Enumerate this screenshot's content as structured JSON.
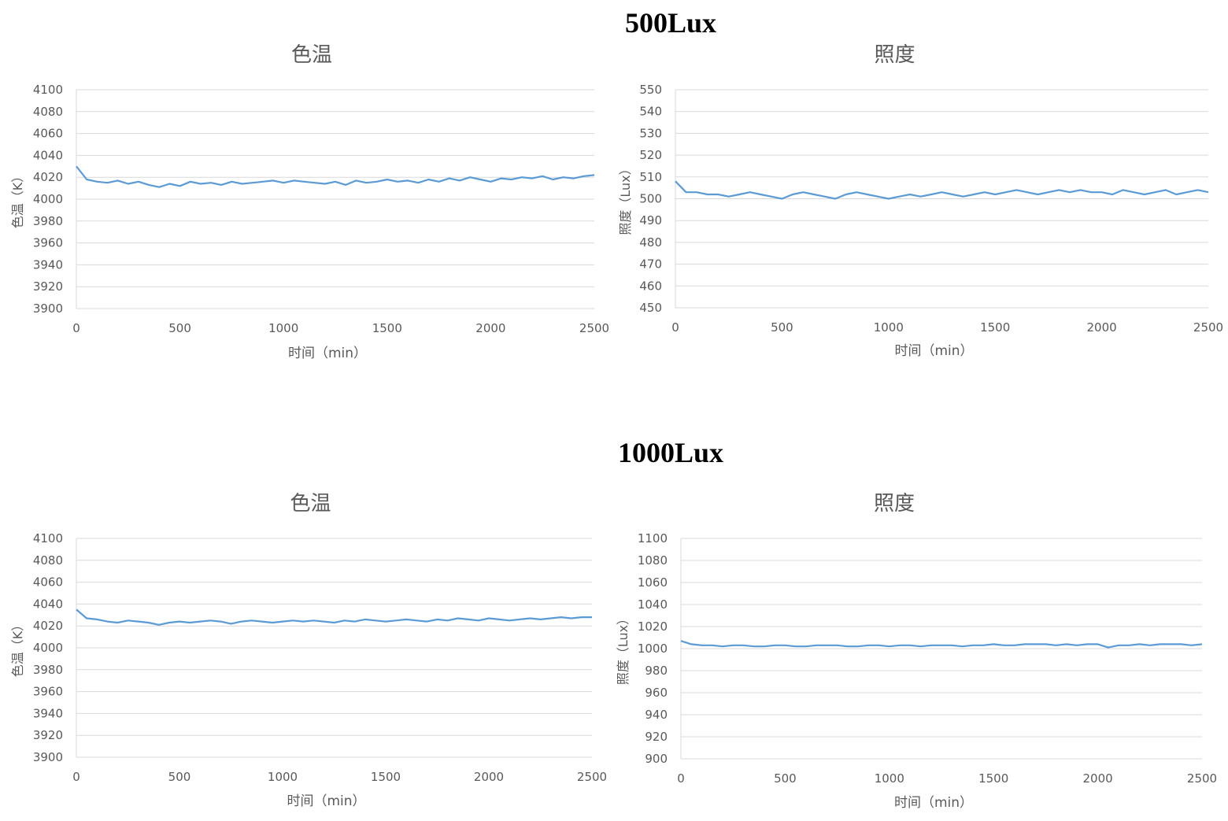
{
  "sections": [
    {
      "title": "500Lux"
    },
    {
      "title": "1000Lux"
    }
  ],
  "colors": {
    "line": "#5B9BD5",
    "grid": "#D9D9D9",
    "text": "#595959"
  },
  "chart_data": [
    {
      "type": "line",
      "section": "500Lux",
      "title": "色温",
      "xlabel": "时间（min）",
      "ylabel": "色温（K）",
      "xlim": [
        0,
        2500
      ],
      "ylim": [
        3900,
        4100
      ],
      "xticks": [
        0,
        500,
        1000,
        1500,
        2000,
        2500
      ],
      "yticks": [
        3900,
        3920,
        3940,
        3960,
        3980,
        4000,
        4020,
        4040,
        4060,
        4080,
        4100
      ],
      "grid": true,
      "x_start": 0,
      "x_step": 50,
      "values": [
        4030,
        4018,
        4016,
        4015,
        4017,
        4014,
        4016,
        4013,
        4011,
        4014,
        4012,
        4016,
        4014,
        4015,
        4013,
        4016,
        4014,
        4015,
        4016,
        4017,
        4015,
        4017,
        4016,
        4015,
        4014,
        4016,
        4013,
        4017,
        4015,
        4016,
        4018,
        4016,
        4017,
        4015,
        4018,
        4016,
        4019,
        4017,
        4020,
        4018,
        4016,
        4019,
        4018,
        4020,
        4019,
        4021,
        4018,
        4020,
        4019,
        4021,
        4022
      ]
    },
    {
      "type": "line",
      "section": "500Lux",
      "title": "照度",
      "xlabel": "时间（min）",
      "ylabel": "照度（Lux）",
      "xlim": [
        0,
        2500
      ],
      "ylim": [
        450,
        550
      ],
      "xticks": [
        0,
        500,
        1000,
        1500,
        2000,
        2500
      ],
      "yticks": [
        450,
        460,
        470,
        480,
        490,
        500,
        510,
        520,
        530,
        540,
        550
      ],
      "grid": true,
      "x_start": 0,
      "x_step": 50,
      "values": [
        508,
        503,
        503,
        502,
        502,
        501,
        502,
        503,
        502,
        501,
        500,
        502,
        503,
        502,
        501,
        500,
        502,
        503,
        502,
        501,
        500,
        501,
        502,
        501,
        502,
        503,
        502,
        501,
        502,
        503,
        502,
        503,
        504,
        503,
        502,
        503,
        504,
        503,
        504,
        503,
        503,
        502,
        504,
        503,
        502,
        503,
        504,
        502,
        503,
        504,
        503
      ]
    },
    {
      "type": "line",
      "section": "1000Lux",
      "title": "色温",
      "xlabel": "时间（min）",
      "ylabel": "色温（K）",
      "xlim": [
        0,
        2500
      ],
      "ylim": [
        3900,
        4100
      ],
      "xticks": [
        0,
        500,
        1000,
        1500,
        2000,
        2500
      ],
      "yticks": [
        3900,
        3920,
        3940,
        3960,
        3980,
        4000,
        4020,
        4040,
        4060,
        4080,
        4100
      ],
      "grid": true,
      "x_start": 0,
      "x_step": 50,
      "values": [
        4035,
        4027,
        4026,
        4024,
        4023,
        4025,
        4024,
        4023,
        4021,
        4023,
        4024,
        4023,
        4024,
        4025,
        4024,
        4022,
        4024,
        4025,
        4024,
        4023,
        4024,
        4025,
        4024,
        4025,
        4024,
        4023,
        4025,
        4024,
        4026,
        4025,
        4024,
        4025,
        4026,
        4025,
        4024,
        4026,
        4025,
        4027,
        4026,
        4025,
        4027,
        4026,
        4025,
        4026,
        4027,
        4026,
        4027,
        4028,
        4027,
        4028,
        4028
      ]
    },
    {
      "type": "line",
      "section": "1000Lux",
      "title": "照度",
      "xlabel": "时间（min）",
      "ylabel": "照度（Lux）",
      "xlim": [
        0,
        2500
      ],
      "ylim": [
        900,
        1100
      ],
      "xticks": [
        0,
        500,
        1000,
        1500,
        2000,
        2500
      ],
      "yticks": [
        900,
        920,
        940,
        960,
        980,
        1000,
        1020,
        1040,
        1060,
        1080,
        1100
      ],
      "grid": true,
      "x_start": 0,
      "x_step": 50,
      "values": [
        1007,
        1004,
        1003,
        1003,
        1002,
        1003,
        1003,
        1002,
        1002,
        1003,
        1003,
        1002,
        1002,
        1003,
        1003,
        1003,
        1002,
        1002,
        1003,
        1003,
        1002,
        1003,
        1003,
        1002,
        1003,
        1003,
        1003,
        1002,
        1003,
        1003,
        1004,
        1003,
        1003,
        1004,
        1004,
        1004,
        1003,
        1004,
        1003,
        1004,
        1004,
        1001,
        1003,
        1003,
        1004,
        1003,
        1004,
        1004,
        1004,
        1003,
        1004
      ]
    }
  ]
}
